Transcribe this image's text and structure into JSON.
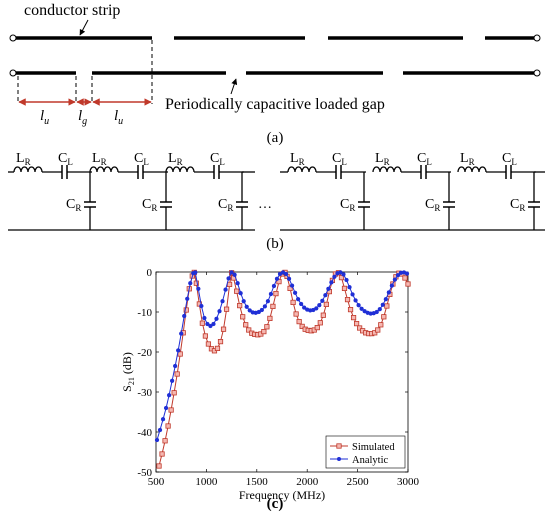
{
  "panel_a": {
    "label_conductor": "conductor strip",
    "label_gap": "Periodically capacitive loaded gap",
    "dim_lu": "l",
    "dim_lu_sub": "u",
    "dim_lg": "l",
    "dim_lg_sub": "g",
    "caption": "(a)"
  },
  "panel_b": {
    "LR_main": "L",
    "LR_sub": "R",
    "CL_main": "C",
    "CL_sub": "L",
    "CR_main": "C",
    "CR_sub": "R",
    "ellipsis": "…",
    "caption": "(b)"
  },
  "panel_c": {
    "caption": "(c)"
  },
  "chart_data": {
    "type": "line",
    "xlabel": "Frequency (MHz)",
    "ylabel_main": "S",
    "ylabel_sub": "21",
    "ylabel_tail": " (dB)",
    "xlim": [
      500,
      3000
    ],
    "ylim": [
      -50,
      0
    ],
    "x_ticks": [
      500,
      1000,
      1500,
      2000,
      2500,
      3000
    ],
    "y_ticks": [
      0,
      -10,
      -20,
      -30,
      -40,
      -50
    ],
    "grid": false,
    "legend_position": "bottom-right",
    "series": [
      {
        "name": "Simulated",
        "color": "#c0392b",
        "marker": "square",
        "x": [
          530,
          560,
          590,
          620,
          650,
          680,
          710,
          740,
          770,
          800,
          830,
          860,
          880,
          900,
          930,
          960,
          990,
          1020,
          1050,
          1080,
          1110,
          1140,
          1170,
          1200,
          1230,
          1250,
          1270,
          1300,
          1330,
          1360,
          1390,
          1420,
          1450,
          1480,
          1510,
          1540,
          1570,
          1600,
          1630,
          1660,
          1690,
          1720,
          1750,
          1780,
          1800,
          1830,
          1860,
          1890,
          1920,
          1950,
          1980,
          2010,
          2040,
          2070,
          2100,
          2130,
          2160,
          2190,
          2220,
          2250,
          2280,
          2310,
          2340,
          2370,
          2400,
          2430,
          2460,
          2490,
          2520,
          2550,
          2580,
          2610,
          2640,
          2670,
          2700,
          2730,
          2760,
          2790,
          2820,
          2850,
          2880,
          2910,
          2940,
          2970,
          3000
        ],
        "y": [
          -48.5,
          -45.5,
          -42.2,
          -38.5,
          -34.5,
          -30.2,
          -25.5,
          -20.5,
          -15.2,
          -9.5,
          -4.2,
          -1.0,
          -0.1,
          -2.8,
          -8.0,
          -12.8,
          -16.0,
          -18.0,
          -19.2,
          -19.7,
          -19.1,
          -17.4,
          -14.3,
          -9.3,
          -3.1,
          -0.2,
          -1.5,
          -4.8,
          -8.4,
          -11.2,
          -13.2,
          -14.5,
          -15.3,
          -15.6,
          -15.7,
          -15.5,
          -14.9,
          -13.7,
          -11.6,
          -8.6,
          -5.4,
          -2.4,
          -0.5,
          -0.1,
          -1.1,
          -4.1,
          -7.6,
          -10.5,
          -12.4,
          -13.6,
          -14.3,
          -14.6,
          -14.7,
          -14.5,
          -13.9,
          -12.7,
          -10.8,
          -8.1,
          -4.9,
          -2.1,
          -0.5,
          -0.2,
          -1.4,
          -4.1,
          -6.9,
          -9.4,
          -11.4,
          -12.9,
          -14.0,
          -14.7,
          -15.2,
          -15.4,
          -15.4,
          -15.2,
          -14.5,
          -13.2,
          -11.2,
          -8.5,
          -5.6,
          -3.0,
          -1.2,
          -0.3,
          -0.5,
          -1.5,
          -3.0
        ]
      },
      {
        "name": "Analytic",
        "color": "#1f2fd6",
        "marker": "dot",
        "x": [
          510,
          540,
          570,
          600,
          630,
          660,
          690,
          720,
          750,
          780,
          810,
          840,
          870,
          890,
          920,
          950,
          980,
          1010,
          1040,
          1070,
          1100,
          1130,
          1160,
          1190,
          1220,
          1250,
          1280,
          1310,
          1340,
          1370,
          1400,
          1430,
          1460,
          1490,
          1520,
          1550,
          1580,
          1610,
          1640,
          1670,
          1700,
          1730,
          1760,
          1790,
          1820,
          1850,
          1880,
          1910,
          1940,
          1970,
          2000,
          2030,
          2060,
          2090,
          2120,
          2150,
          2180,
          2210,
          2240,
          2270,
          2300,
          2330,
          2360,
          2390,
          2420,
          2450,
          2480,
          2510,
          2540,
          2570,
          2600,
          2630,
          2660,
          2690,
          2720,
          2750,
          2780,
          2810,
          2840,
          2870,
          2900,
          2930,
          2960,
          2990
        ],
        "y": [
          -42.0,
          -39.5,
          -36.8,
          -34.0,
          -30.8,
          -27.2,
          -23.5,
          -19.6,
          -15.4,
          -11.0,
          -6.7,
          -2.8,
          -0.3,
          -0.1,
          -4.2,
          -8.5,
          -11.5,
          -13.0,
          -13.5,
          -13.0,
          -11.7,
          -9.8,
          -7.3,
          -4.4,
          -1.6,
          -0.1,
          -0.7,
          -2.8,
          -5.3,
          -7.3,
          -8.7,
          -9.6,
          -10.1,
          -10.2,
          -10.0,
          -9.5,
          -8.6,
          -7.3,
          -5.5,
          -3.5,
          -1.7,
          -0.5,
          -0.1,
          -0.5,
          -1.7,
          -3.4,
          -5.2,
          -6.8,
          -8.0,
          -8.9,
          -9.4,
          -9.6,
          -9.5,
          -9.1,
          -8.3,
          -7.2,
          -5.8,
          -4.2,
          -2.6,
          -1.2,
          -0.3,
          -0.1,
          -0.6,
          -2.0,
          -3.8,
          -5.6,
          -7.1,
          -8.3,
          -9.2,
          -9.8,
          -10.2,
          -10.4,
          -10.3,
          -10.0,
          -9.3,
          -8.2,
          -6.8,
          -5.1,
          -3.4,
          -1.9,
          -0.8,
          -0.2,
          -0.1,
          -0.4
        ]
      }
    ]
  }
}
